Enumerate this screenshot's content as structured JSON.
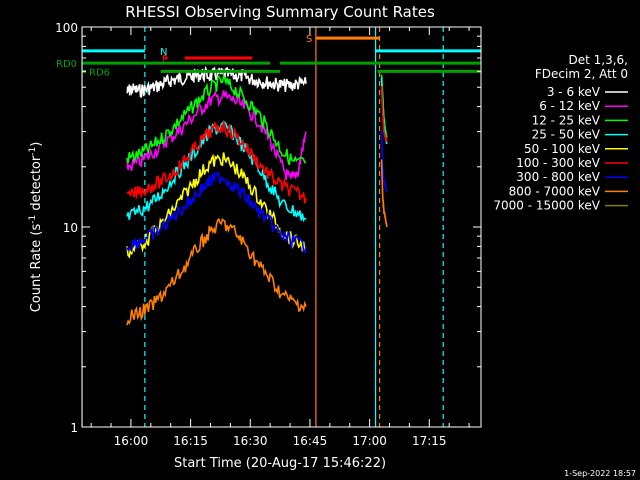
{
  "chart_data": {
    "type": "line",
    "title": "RHESSI Observing Summary Count Rates",
    "xlabel": "Start Time (20-Aug-17 15:46:22)",
    "ylabel_main": "Count Rate (s",
    "ylabel_sup1": "-1",
    "ylabel_mid": " detector",
    "ylabel_sup2": "-1",
    "ylabel_end": ")",
    "yscale": "log",
    "ylim": [
      1,
      100
    ],
    "xlim_minutes": [
      -12.3,
      88.0
    ],
    "x_ticks": [
      {
        "m": 0,
        "label": "16:00"
      },
      {
        "m": 15,
        "label": "16:15"
      },
      {
        "m": 30,
        "label": "16:30"
      },
      {
        "m": 45,
        "label": "16:45"
      },
      {
        "m": 60,
        "label": "17:00"
      },
      {
        "m": 75,
        "label": "17:15"
      }
    ],
    "y_ticks": [
      {
        "v": 1,
        "label": "1"
      },
      {
        "v": 10,
        "label": "10"
      },
      {
        "v": 100,
        "label": "100"
      }
    ],
    "legend": {
      "header1": "Det 1,3,6,",
      "header2": "FDecim 2, Att 0",
      "entries": [
        {
          "label": "3 - 6 keV",
          "color": "#ffffff"
        },
        {
          "label": "6 - 12 keV",
          "color": "#ff00ff"
        },
        {
          "label": "12 - 25 keV",
          "color": "#00ff00"
        },
        {
          "label": "25 - 50 keV",
          "color": "#00ffff"
        },
        {
          "label": "50 - 100 keV",
          "color": "#ffff00"
        },
        {
          "label": "100 - 300 keV",
          "color": "#ff0000"
        },
        {
          "label": "300 - 800 keV",
          "color": "#0000ff"
        },
        {
          "label": "800 - 7000 keV",
          "color": "#ff8000"
        },
        {
          "label": "7000 - 15000 keV",
          "color": "#808000"
        }
      ]
    },
    "flags": [
      {
        "label": "N",
        "color": "#00ffff",
        "segments": [
          [
            -12.3,
            3.5
          ],
          [
            61.5,
            88.0
          ]
        ],
        "value": 76
      },
      {
        "label": "S",
        "color": "#ff8000",
        "segments": [
          [
            46.5,
            62.5
          ]
        ],
        "value": 88
      },
      {
        "label": "F",
        "color": "#ff0000",
        "segments": [
          [
            8.5,
            9.2
          ],
          [
            13.5,
            30.5
          ]
        ],
        "value": 70
      },
      {
        "label": "RD0",
        "color": "#00a000",
        "segments": [
          [
            -12.3,
            35.0
          ],
          [
            37.5,
            88.0
          ]
        ],
        "value": 66
      },
      {
        "label": "RD6",
        "color": "#00a000",
        "segments": [
          [
            -12.3,
            -11.3
          ],
          [
            7.5,
            37.5
          ],
          [
            62.0,
            88.0
          ]
        ],
        "value": 60
      }
    ],
    "vlines": [
      {
        "m": -12.3,
        "color": "#00ffff",
        "dashed": false
      },
      {
        "m": 3.5,
        "color": "#00ffff",
        "dashed": true
      },
      {
        "m": 46.5,
        "color": "#ff8000",
        "dashed": false
      },
      {
        "m": 61.5,
        "color": "#00ffff",
        "dashed": false
      },
      {
        "m": 62.5,
        "color": "#ff8000",
        "dashed": true
      },
      {
        "m": 78.5,
        "color": "#00ffff",
        "dashed": true
      }
    ],
    "series": [
      {
        "name": "3 - 6 keV",
        "color": "#ffffff",
        "x": [
          -1.0,
          0.0,
          2.0,
          4.0,
          6.0,
          8.0,
          10.0,
          12.0,
          14.0,
          16.0,
          18.0,
          20.0,
          22.0,
          24.0,
          26.0,
          28.0,
          30.0,
          32.0,
          34.0,
          36.0,
          38.0,
          40.0,
          42.0,
          44.0
        ],
        "y": [
          47,
          49,
          48,
          49,
          50,
          52,
          54,
          55,
          56,
          57,
          58,
          57,
          58,
          58,
          57,
          57,
          55,
          54,
          53,
          52,
          51,
          51,
          52,
          52
        ]
      },
      {
        "name": "6 - 12 keV",
        "color": "#ff00ff",
        "x": [
          -1.0,
          2.0,
          5.0,
          8.0,
          11.0,
          14.0,
          17.0,
          20.0,
          23.0,
          26.0,
          29.0,
          32.0,
          35.0,
          38.0,
          40.0,
          42.0,
          44.0
        ],
        "y": [
          20,
          21,
          23,
          26,
          29,
          33,
          38,
          43,
          45,
          43,
          39,
          34,
          27,
          20,
          17,
          19,
          30
        ]
      },
      {
        "name": "12 - 25 keV",
        "color": "#00ff00",
        "x": [
          -1.0,
          2.0,
          5.0,
          8.0,
          11.0,
          14.0,
          17.0,
          20.0,
          23.0,
          26.0,
          29.0,
          32.0,
          35.0,
          38.0,
          41.0,
          44.0
        ],
        "y": [
          22,
          23,
          25,
          28,
          32,
          37,
          43,
          49,
          54,
          49,
          43,
          37,
          30,
          24,
          21,
          21
        ]
      },
      {
        "name": "25 - 50 keV",
        "color": "#00ffff",
        "x": [
          -1.0,
          2.0,
          5.0,
          8.0,
          11.0,
          14.0,
          17.0,
          20.0,
          23.0,
          26.0,
          29.0,
          32.0,
          35.0,
          38.0,
          41.0,
          44.0
        ],
        "y": [
          11,
          12,
          13,
          15,
          18,
          21,
          25,
          30,
          32,
          29,
          24,
          20,
          16,
          13,
          12,
          11
        ]
      },
      {
        "name": "50 - 100 keV",
        "color": "#ffff00",
        "x": [
          -1.0,
          2.0,
          5.0,
          8.0,
          11.0,
          14.0,
          17.0,
          20.0,
          23.0,
          26.0,
          29.0,
          32.0,
          35.0,
          38.0,
          41.0,
          44.0
        ],
        "y": [
          7.5,
          8,
          9,
          10.5,
          12.5,
          15,
          18,
          21,
          22,
          20,
          17,
          14,
          11.5,
          9.5,
          8.5,
          8
        ]
      },
      {
        "name": "100 - 300 keV",
        "color": "#ff0000",
        "x": [
          -1.0,
          2.0,
          5.0,
          8.0,
          11.0,
          14.0,
          17.0,
          20.0,
          23.0,
          26.0,
          29.0,
          32.0,
          35.0,
          38.0,
          41.0,
          44.0
        ],
        "y": [
          14,
          15,
          16,
          17,
          19,
          22,
          26,
          30,
          32,
          29,
          25,
          21,
          18,
          16,
          15,
          14
        ]
      },
      {
        "name": "300 - 800 keV",
        "color": "#0000ff",
        "x": [
          -1.0,
          2.0,
          5.0,
          8.0,
          11.0,
          14.0,
          17.0,
          20.0,
          23.0,
          26.0,
          29.0,
          32.0,
          35.0,
          38.0,
          41.0,
          44.0
        ],
        "y": [
          8,
          8.5,
          9,
          10,
          11.5,
          13,
          15,
          17,
          18,
          16,
          14,
          12,
          10.5,
          9,
          8.5,
          8
        ]
      },
      {
        "name": "800 - 7000 keV",
        "color": "#ff8000",
        "x": [
          -1.0,
          2.0,
          5.0,
          8.0,
          11.0,
          14.0,
          17.0,
          20.0,
          23.0,
          26.0,
          29.0,
          32.0,
          35.0,
          38.0,
          41.0,
          44.0
        ],
        "y": [
          3.5,
          3.7,
          4,
          4.6,
          5.4,
          6.5,
          8,
          9.5,
          10.5,
          9.5,
          8,
          6.5,
          5.5,
          4.6,
          4.2,
          4
        ]
      },
      {
        "name": "7000 - 15000 keV",
        "color": "#808000",
        "x": [],
        "y": []
      }
    ],
    "late_segment": {
      "x": [
        63.0,
        63.3,
        63.6,
        64.0,
        64.3
      ],
      "series": [
        {
          "name": "12 - 25 keV",
          "color": "#00ff00",
          "y": [
            58,
            45,
            35,
            30,
            28
          ]
        },
        {
          "name": "25 - 50 keV",
          "color": "#00ffff",
          "y": [
            55,
            40,
            32,
            28,
            26
          ]
        },
        {
          "name": "100 - 300 keV",
          "color": "#ff0000",
          "y": [
            50,
            36,
            30,
            28,
            27
          ]
        },
        {
          "name": "300 - 800 keV",
          "color": "#0000ff",
          "y": [
            30,
            20,
            17,
            16,
            15
          ]
        },
        {
          "name": "800 - 7000 keV",
          "color": "#ff8000",
          "y": [
            22,
            14,
            12,
            11,
            10
          ]
        }
      ]
    },
    "footer": "1-Sep-2022 18:57"
  }
}
